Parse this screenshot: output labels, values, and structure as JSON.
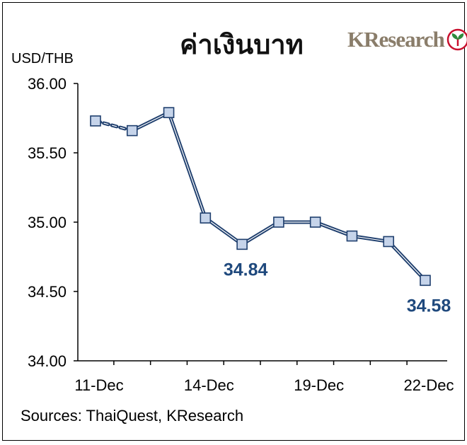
{
  "header": {
    "title": "ค่าเงินบาท",
    "logo_text": "KResearch",
    "logo_icon": "kbank-sprout-logo"
  },
  "footer": {
    "source": "Sources: ThaiQuest, KResearch"
  },
  "colors": {
    "line": "#1f3f6e",
    "marker_fill": "#c6d4ea",
    "axis": "#000000",
    "label": "#1f497d"
  },
  "chart_data": {
    "type": "line",
    "title": "ค่าเงินบาท",
    "ylabel": "USD/THB",
    "xlabel": "",
    "ylim": [
      34.0,
      36.0
    ],
    "yticks": [
      "34.00",
      "34.50",
      "35.00",
      "35.50",
      "36.00"
    ],
    "xtick_labels": [
      {
        "index": 0,
        "label": "11-Dec"
      },
      {
        "index": 3,
        "label": "14-Dec"
      },
      {
        "index": 6,
        "label": "19-Dec"
      },
      {
        "index": 9,
        "label": "22-Dec"
      }
    ],
    "series": [
      {
        "values": [
          35.73,
          35.66,
          35.79,
          35.03,
          34.84,
          35.0,
          35.0,
          34.9,
          34.86,
          34.58
        ],
        "dashed_segments": [
          0
        ]
      }
    ],
    "annotations": [
      {
        "index": 4,
        "text": "34.84"
      },
      {
        "index": 9,
        "text": "34.58"
      }
    ],
    "grid": false,
    "legend": "none"
  }
}
